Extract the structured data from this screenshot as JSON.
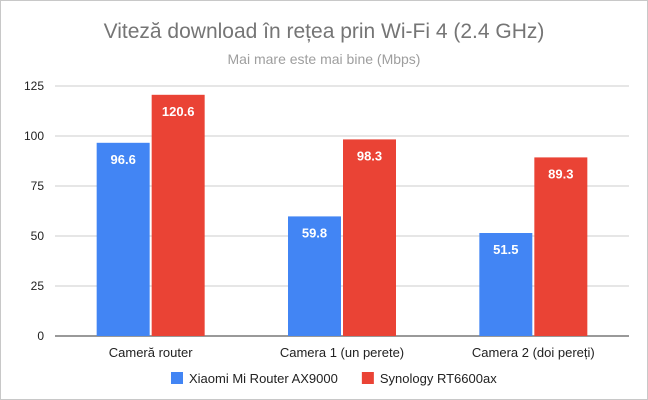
{
  "chart_data": {
    "type": "bar",
    "title": "Viteză download în rețea prin Wi-Fi 4 (2.4 GHz)",
    "subtitle": "Mai mare este mai bine (Mbps)",
    "categories": [
      "Cameră router",
      "Camera 1 (un perete)",
      "Camera 2 (doi pereți)"
    ],
    "series": [
      {
        "name": "Xiaomi Mi Router AX9000",
        "values": [
          96.6,
          59.8,
          51.5
        ],
        "color": "#4285f4"
      },
      {
        "name": "Synology RT6600ax",
        "values": [
          120.6,
          98.3,
          89.3
        ],
        "color": "#ea4335"
      }
    ],
    "ylim": [
      0,
      125
    ],
    "yticks": [
      0,
      25,
      50,
      75,
      100,
      125
    ],
    "grid": true,
    "legend": "bottom"
  }
}
